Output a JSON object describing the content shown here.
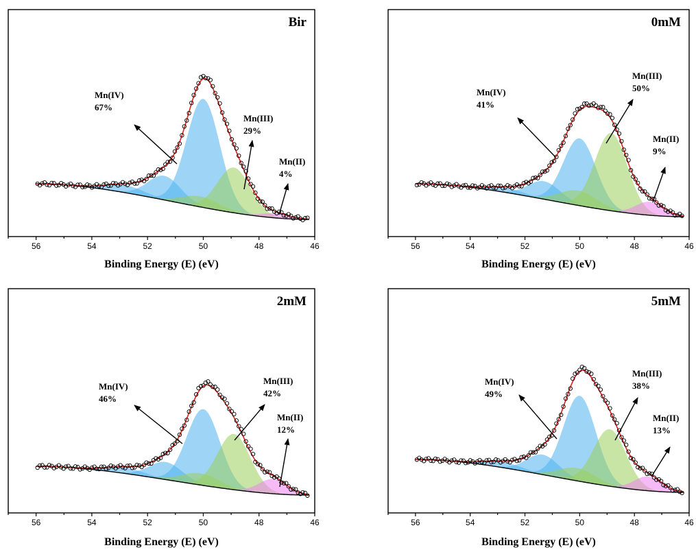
{
  "chart_data": [
    {
      "type": "area",
      "title": "Bir",
      "xlabel": "Binding Energy (E) (eV)",
      "ylabel": "",
      "xlim": [
        57,
        46
      ],
      "xticks": [
        56,
        54,
        52,
        50,
        48,
        46
      ],
      "x_reversed": true,
      "series": [
        {
          "name": "Mn(IV)",
          "percent": 67,
          "components": [
            {
              "center": 50.0,
              "height": 0.72,
              "fwhm": 1.4
            },
            {
              "center": 51.4,
              "height": 0.16,
              "fwhm": 1.4
            },
            {
              "center": 52.8,
              "height": 0.05,
              "fwhm": 1.6
            }
          ],
          "color": "#4fb3ef"
        },
        {
          "name": "Mn(III)",
          "percent": 29,
          "components": [
            {
              "center": 48.9,
              "height": 0.3,
              "fwhm": 1.4
            },
            {
              "center": 50.1,
              "height": 0.07,
              "fwhm": 1.6
            }
          ],
          "color": "#9bcf5c"
        },
        {
          "name": "Mn(II)",
          "percent": 4,
          "components": [
            {
              "center": 47.4,
              "height": 0.03,
              "fwhm": 1.2
            }
          ],
          "color": "#ee82ee"
        }
      ],
      "annotations": [
        {
          "label": "Mn(IV)",
          "value": "67%"
        },
        {
          "label": "Mn(III)",
          "value": "29%"
        },
        {
          "label": "Mn(II)",
          "value": "4%"
        }
      ]
    },
    {
      "type": "area",
      "title": "0mM",
      "xlabel": "Binding Energy (E) (eV)",
      "ylabel": "",
      "xlim": [
        57,
        46
      ],
      "xticks": [
        56,
        54,
        52,
        50,
        48,
        46
      ],
      "x_reversed": true,
      "series": [
        {
          "name": "Mn(IV)",
          "percent": 41,
          "components": [
            {
              "center": 50.0,
              "height": 0.45,
              "fwhm": 1.4
            },
            {
              "center": 51.3,
              "height": 0.12,
              "fwhm": 1.4
            },
            {
              "center": 52.7,
              "height": 0.03,
              "fwhm": 1.6
            }
          ],
          "color": "#4fb3ef"
        },
        {
          "name": "Mn(III)",
          "percent": 50,
          "components": [
            {
              "center": 48.85,
              "height": 0.52,
              "fwhm": 1.4
            },
            {
              "center": 50.05,
              "height": 0.1,
              "fwhm": 1.6
            }
          ],
          "color": "#9bcf5c"
        },
        {
          "name": "Mn(II)",
          "percent": 9,
          "components": [
            {
              "center": 47.45,
              "height": 0.09,
              "fwhm": 1.2
            }
          ],
          "color": "#ee82ee"
        }
      ],
      "annotations": [
        {
          "label": "Mn(IV)",
          "value": "41%"
        },
        {
          "label": "Mn(III)",
          "value": "50%"
        },
        {
          "label": "Mn(II)",
          "value": "9%"
        }
      ]
    },
    {
      "type": "area",
      "title": "2mM",
      "xlabel": "Binding Energy (E) (eV)",
      "ylabel": "",
      "xlim": [
        57,
        46
      ],
      "xticks": [
        56,
        54,
        52,
        50,
        48,
        46
      ],
      "x_reversed": true,
      "series": [
        {
          "name": "Mn(IV)",
          "percent": 46,
          "components": [
            {
              "center": 50.0,
              "height": 0.52,
              "fwhm": 1.4
            },
            {
              "center": 51.35,
              "height": 0.12,
              "fwhm": 1.4
            },
            {
              "center": 52.8,
              "height": 0.04,
              "fwhm": 1.6
            }
          ],
          "color": "#4fb3ef"
        },
        {
          "name": "Mn(III)",
          "percent": 42,
          "components": [
            {
              "center": 48.9,
              "height": 0.38,
              "fwhm": 1.4
            },
            {
              "center": 50.1,
              "height": 0.08,
              "fwhm": 1.6
            }
          ],
          "color": "#9bcf5c"
        },
        {
          "name": "Mn(II)",
          "percent": 12,
          "components": [
            {
              "center": 47.5,
              "height": 0.1,
              "fwhm": 1.2
            }
          ],
          "color": "#ee82ee"
        }
      ],
      "annotations": [
        {
          "label": "Mn(IV)",
          "value": "46%"
        },
        {
          "label": "Mn(III)",
          "value": "42%"
        },
        {
          "label": "Mn(II)",
          "value": "12%"
        }
      ]
    },
    {
      "type": "area",
      "title": "5mM",
      "xlabel": "Binding Energy (E) (eV)",
      "ylabel": "",
      "xlim": [
        57,
        46
      ],
      "xticks": [
        56,
        54,
        52,
        50,
        48,
        46
      ],
      "x_reversed": true,
      "series": [
        {
          "name": "Mn(IV)",
          "percent": 49,
          "components": [
            {
              "center": 50.0,
              "height": 0.6,
              "fwhm": 1.4
            },
            {
              "center": 51.35,
              "height": 0.14,
              "fwhm": 1.4
            },
            {
              "center": 52.8,
              "height": 0.04,
              "fwhm": 1.6
            }
          ],
          "color": "#4fb3ef"
        },
        {
          "name": "Mn(III)",
          "percent": 38,
          "components": [
            {
              "center": 48.9,
              "height": 0.4,
              "fwhm": 1.4
            },
            {
              "center": 50.1,
              "height": 0.09,
              "fwhm": 1.6
            }
          ],
          "color": "#9bcf5c"
        },
        {
          "name": "Mn(II)",
          "percent": 13,
          "components": [
            {
              "center": 47.5,
              "height": 0.1,
              "fwhm": 1.2
            }
          ],
          "color": "#ee82ee"
        }
      ],
      "annotations": [
        {
          "label": "Mn(IV)",
          "value": "49%"
        },
        {
          "label": "Mn(III)",
          "value": "38%"
        },
        {
          "label": "Mn(II)",
          "value": "13%"
        }
      ]
    }
  ],
  "colors": {
    "fit_envelope": "#e0201b",
    "background": "#000000",
    "data_points": "#000000"
  }
}
